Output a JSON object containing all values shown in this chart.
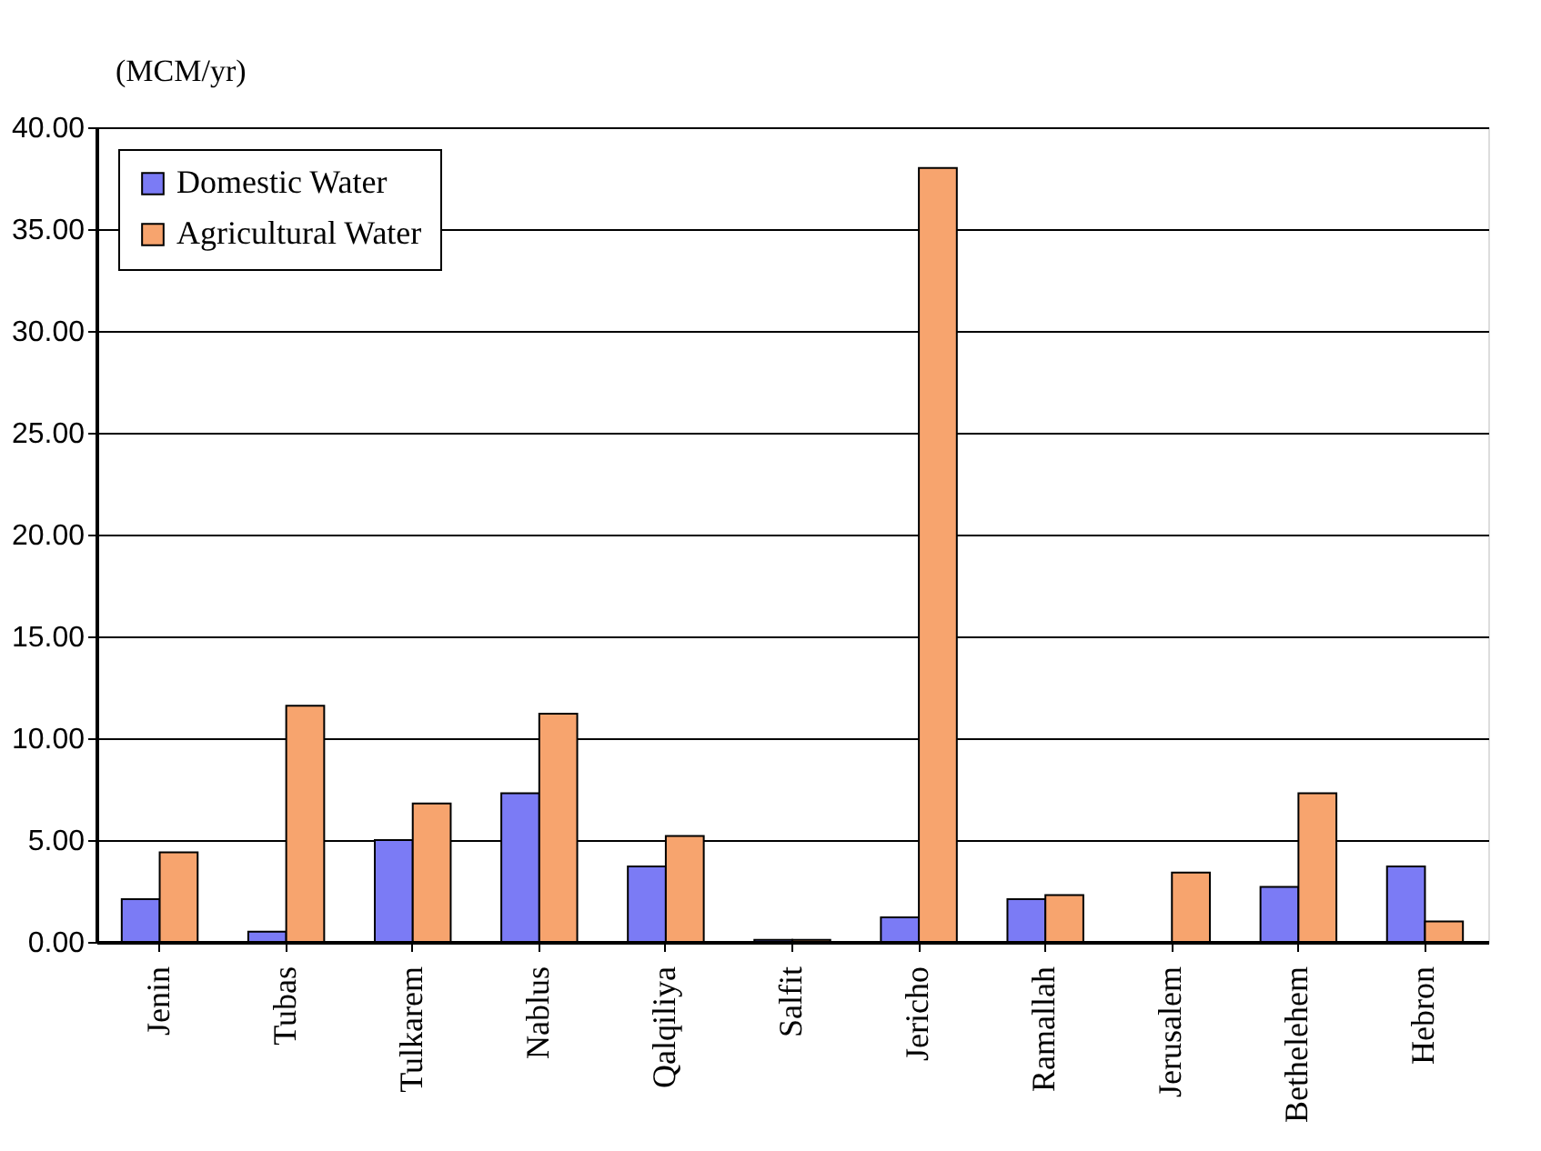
{
  "chart_data": {
    "type": "bar",
    "ylabel": "(MCM/yr)",
    "categories": [
      "Jenin",
      "Tubas",
      "Tulkarem",
      "Nablus",
      "Qalqiliya",
      "Salfit",
      "Jericho",
      "Ramallah",
      "Jerusalem",
      "Bethelehem",
      "Hebron"
    ],
    "series": [
      {
        "name": "Domestic Water",
        "color": "#7b7bf5",
        "values": [
          2.1,
          0.5,
          5.0,
          7.3,
          3.7,
          0.1,
          1.2,
          2.1,
          null,
          2.7,
          3.7
        ]
      },
      {
        "name": "Agricultural Water",
        "color": "#f7a46e",
        "values": [
          4.4,
          11.6,
          6.8,
          11.2,
          5.2,
          0.1,
          38.0,
          2.3,
          3.4,
          7.3,
          1.0
        ]
      }
    ],
    "ylim": [
      0,
      40
    ],
    "yticks": [
      {
        "value": 0,
        "label": "0.00"
      },
      {
        "value": 5,
        "label": "5.00"
      },
      {
        "value": 10,
        "label": "10.00"
      },
      {
        "value": 15,
        "label": "15.00"
      },
      {
        "value": 20,
        "label": "20.00"
      },
      {
        "value": 25,
        "label": "25.00"
      },
      {
        "value": 30,
        "label": "30.00"
      },
      {
        "value": 35,
        "label": "35.00"
      },
      {
        "value": 40,
        "label": "40.00"
      }
    ],
    "grid": "y",
    "legend": "top left"
  }
}
